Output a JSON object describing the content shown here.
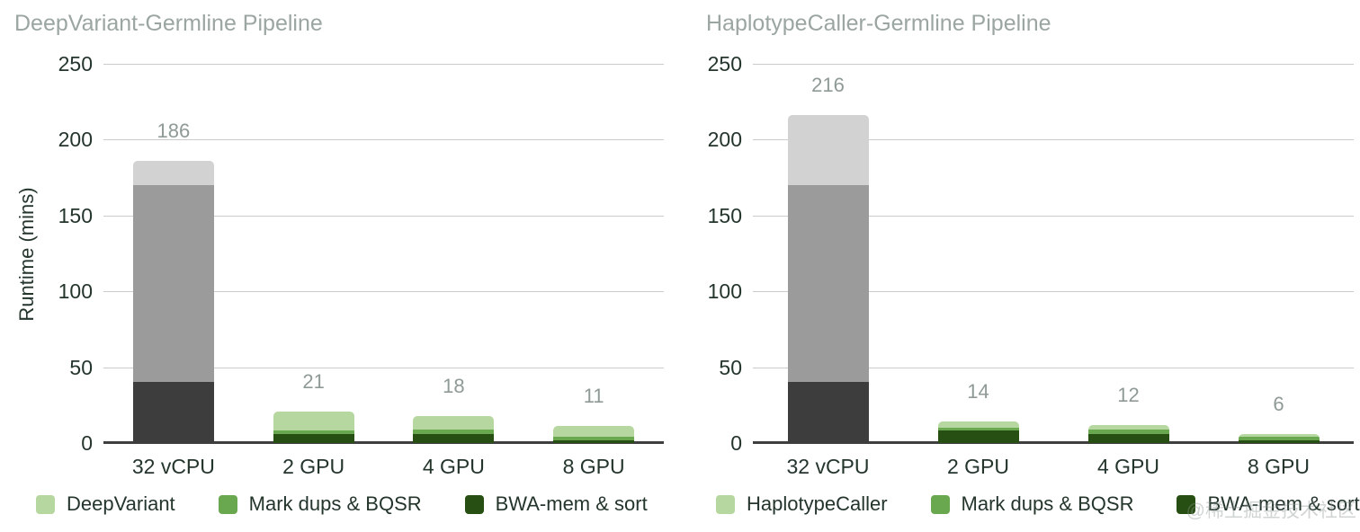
{
  "page": {
    "background": "#ffffff",
    "watermark": "@稀土掘金技术社区"
  },
  "colors": {
    "title_text": "#9ba5a1",
    "axis_text": "#24352c",
    "value_label_text": "#8f9a96",
    "gridline": "#cbcbcb",
    "baseline": "#3f3f3f",
    "cpu_palette_bottom_to_top": [
      "#3d3d3d",
      "#9b9b9b",
      "#d2d2d2"
    ],
    "gpu_palette_bottom_to_top": [
      "#274e13",
      "#6aa84f",
      "#b6d7a0"
    ]
  },
  "chart_data": [
    {
      "type": "bar",
      "stacked": true,
      "title": "DeepVariant-Germline Pipeline",
      "ylabel": "Runtime (mins)",
      "xlabel": "",
      "ylim": [
        0,
        250
      ],
      "yticks": [
        0,
        50,
        100,
        150,
        200,
        250
      ],
      "grid": true,
      "legend_position": "bottom",
      "categories": [
        "32 vCPU",
        "2 GPU",
        "4 GPU",
        "8 GPU"
      ],
      "bar_total_labels": [
        "186",
        "21",
        "18",
        "11"
      ],
      "bar_totals": [
        186,
        21,
        18,
        11
      ],
      "series": [
        {
          "name": "BWA-mem & sort",
          "values": [
            40,
            6,
            6,
            2
          ]
        },
        {
          "name": "Mark dups & BQSR",
          "values": [
            130,
            2,
            3,
            2
          ]
        },
        {
          "name": "DeepVariant",
          "values": [
            16,
            13,
            9,
            7
          ]
        }
      ],
      "note": "32 vCPU bar rendered in grays (dark/mid/light bottom-to-top); GPU bars in greens (dark/mid/light bottom-to-top)",
      "legend": [
        {
          "label": "DeepVariant",
          "color": "#b6d7a0"
        },
        {
          "label": "Mark dups & BQSR",
          "color": "#6aa84f"
        },
        {
          "label": "BWA-mem & sort",
          "color": "#274e13"
        }
      ]
    },
    {
      "type": "bar",
      "stacked": true,
      "title": "HaplotypeCaller-Germline Pipeline",
      "ylabel": "",
      "xlabel": "",
      "ylim": [
        0,
        250
      ],
      "yticks": [
        0,
        50,
        100,
        150,
        200,
        250
      ],
      "grid": true,
      "legend_position": "bottom",
      "categories": [
        "32 vCPU",
        "2 GPU",
        "4 GPU",
        "8 GPU"
      ],
      "bar_total_labels": [
        "216",
        "14",
        "12",
        "6"
      ],
      "bar_totals": [
        216,
        14,
        12,
        6
      ],
      "series": [
        {
          "name": "BWA-mem & sort",
          "values": [
            40,
            8,
            6,
            2
          ]
        },
        {
          "name": "Mark dups & BQSR",
          "values": [
            130,
            2,
            3,
            2
          ]
        },
        {
          "name": "HaplotypeCaller",
          "values": [
            46,
            4,
            3,
            2
          ]
        }
      ],
      "note": "32 vCPU bar rendered in grays (dark/mid/light bottom-to-top); GPU bars in greens (dark/mid/light bottom-to-top)",
      "legend": [
        {
          "label": "HaplotypeCaller",
          "color": "#b6d7a0"
        },
        {
          "label": "Mark dups & BQSR",
          "color": "#6aa84f"
        },
        {
          "label": "BWA-mem & sort",
          "color": "#274e13"
        }
      ]
    }
  ]
}
